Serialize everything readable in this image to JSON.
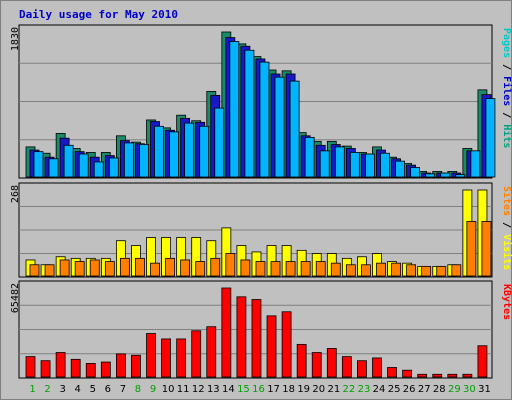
{
  "chart_data": {
    "type": "bar",
    "title": "Daily usage for May 2010",
    "categories": [
      "1",
      "2",
      "3",
      "4",
      "5",
      "6",
      "7",
      "8",
      "9",
      "10",
      "11",
      "12",
      "13",
      "14",
      "15",
      "16",
      "17",
      "18",
      "19",
      "20",
      "21",
      "22",
      "23",
      "24",
      "25",
      "26",
      "27",
      "28",
      "29",
      "30",
      "31"
    ],
    "weekend_days": [
      "1",
      "2",
      "8",
      "9",
      "15",
      "16",
      "22",
      "23",
      "29",
      "30"
    ],
    "panels": [
      {
        "id": "hits-files-pages",
        "max_label": "1830",
        "ymax": 1830,
        "axis_label": [
          {
            "text": "Pages",
            "color": "#00c8c8"
          },
          {
            "text": " / ",
            "color": "#000000"
          },
          {
            "text": "Files",
            "color": "#0000c8"
          },
          {
            "text": " / ",
            "color": "#000000"
          },
          {
            "text": "Hits",
            "color": "#00a080"
          }
        ],
        "series": [
          {
            "name": "Hits",
            "color": "#1a8a6a",
            "values": [
              380,
              300,
              550,
              360,
              310,
              310,
              520,
              440,
              720,
              620,
              780,
              710,
              1080,
              1830,
              1680,
              1520,
              1350,
              1340,
              560,
              450,
              450,
              390,
              310,
              380,
              250,
              170,
              70,
              70,
              70,
              360,
              1100
            ]
          },
          {
            "name": "Files",
            "color": "#1818c8",
            "values": [
              340,
              250,
              490,
              320,
              250,
              270,
              460,
              420,
              700,
              590,
              740,
              690,
              1030,
              1760,
              1650,
              1490,
              1300,
              1300,
              520,
              400,
              410,
              360,
              290,
              340,
              230,
              150,
              50,
              50,
              50,
              330,
              1040
            ]
          },
          {
            "name": "Pages",
            "color": "#00b4ff",
            "values": [
              320,
              230,
              400,
              290,
              190,
              240,
              430,
              410,
              640,
              570,
              680,
              640,
              870,
              1710,
              1600,
              1450,
              1260,
              1210,
              500,
              330,
              380,
              310,
              290,
              300,
              200,
              120,
              40,
              50,
              30,
              330,
              990
            ]
          }
        ]
      },
      {
        "id": "visits-sites",
        "max_label": "268",
        "ymax": 268,
        "axis_label": [
          {
            "text": "Sites",
            "color": "#ff8000"
          },
          {
            "text": " / ",
            "color": "#000000"
          },
          {
            "text": "Visits",
            "color": "#ffff00"
          }
        ],
        "series": [
          {
            "name": "Visits",
            "color": "#ffff00",
            "values": [
              50,
              35,
              60,
              55,
              55,
              55,
              110,
              95,
              120,
              120,
              120,
              120,
              110,
              150,
              95,
              75,
              95,
              95,
              80,
              70,
              70,
              55,
              60,
              70,
              45,
              40,
              30,
              30,
              35,
              268,
              268
            ]
          },
          {
            "name": "Sites",
            "color": "#ff8000",
            "values": [
              35,
              35,
              50,
              45,
              50,
              45,
              55,
              55,
              40,
              55,
              50,
              45,
              55,
              70,
              50,
              45,
              45,
              45,
              45,
              45,
              40,
              35,
              35,
              40,
              40,
              35,
              30,
              30,
              35,
              170,
              170
            ]
          }
        ]
      },
      {
        "id": "kbytes",
        "max_label": "65482",
        "ymax": 65482,
        "axis_label": [
          {
            "text": "KBytes",
            "color": "#ff0000"
          }
        ],
        "series": [
          {
            "name": "KBytes",
            "color": "#ff0000",
            "values": [
              15000,
              12000,
              18000,
              13000,
              10000,
              11000,
              17000,
              16000,
              32000,
              28000,
              28000,
              34000,
              37000,
              65482,
              59000,
              57000,
              45000,
              48000,
              24000,
              18000,
              21000,
              15000,
              12000,
              14000,
              7000,
              5000,
              2000,
              2000,
              2000,
              2000,
              23000
            ]
          }
        ]
      }
    ],
    "grid": true
  }
}
